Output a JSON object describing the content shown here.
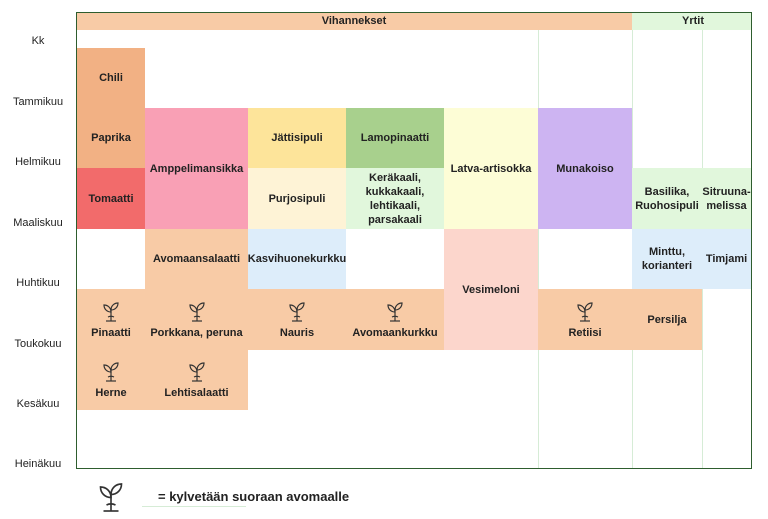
{
  "header": {
    "vegetables": "Vihannekset",
    "herbs": "Yrtit"
  },
  "months": [
    "Kk",
    "Tammikuu",
    "Helmikuu",
    "Maaliskuu",
    "Huhtikuu",
    "Toukokuu",
    "Kesäkuu",
    "Heinäkuu"
  ],
  "cells": {
    "chili": "Chili",
    "paprika": "Paprika",
    "tomaatti": "Tomaatti",
    "amppelimansikka": "Amppelimansikka",
    "jattisipuli": "Jättisipuli",
    "purjosipuli": "Purjosipuli",
    "lamopinaatti": "Lamopinaatti",
    "kaalit": "Keräkaali, kukkakaali, lehtikaali, parsakaali",
    "latva_artisokka": "Latva-artisokka",
    "munakoiso": "Munakoiso",
    "basilika": "Basilika, Ruohosipuli",
    "sitruunamelissa": "Sitruuna-melissa",
    "avomaansalaatti": "Avomaansalaatti",
    "kasvihuonekurkku": "Kasvihuonekurkku",
    "vesimeloni": "Vesimeloni",
    "minttu": "Minttu, korianteri",
    "timjami": "Timjami",
    "pinaatti": "Pinaatti",
    "porkkana": "Porkkana, peruna",
    "nauris": "Nauris",
    "avomaankurkku": "Avomaankurkku",
    "retiisi": "Retiisi",
    "persilja": "Persilja",
    "herne": "Herne",
    "lehtisalaatti": "Lehtisalaatti"
  },
  "legend": {
    "text": "= kylvetään suoraan avomaalle",
    "icon": "sprout-icon"
  },
  "colors": {
    "orange": "#f8cba6",
    "salmon": "#f2b184",
    "red": "#f26b6b",
    "pink": "#f9a0b5",
    "yellow": "#fde49a",
    "cream": "#fef3d6",
    "green": "#a8d08d",
    "lightgreen": "#e1f7dc",
    "lightyellow": "#fdfdd6",
    "lavender": "#cdb4f2",
    "lightblue": "#ddedfa",
    "peach": "#fcd6cc",
    "frame": "#2e5d2e"
  }
}
